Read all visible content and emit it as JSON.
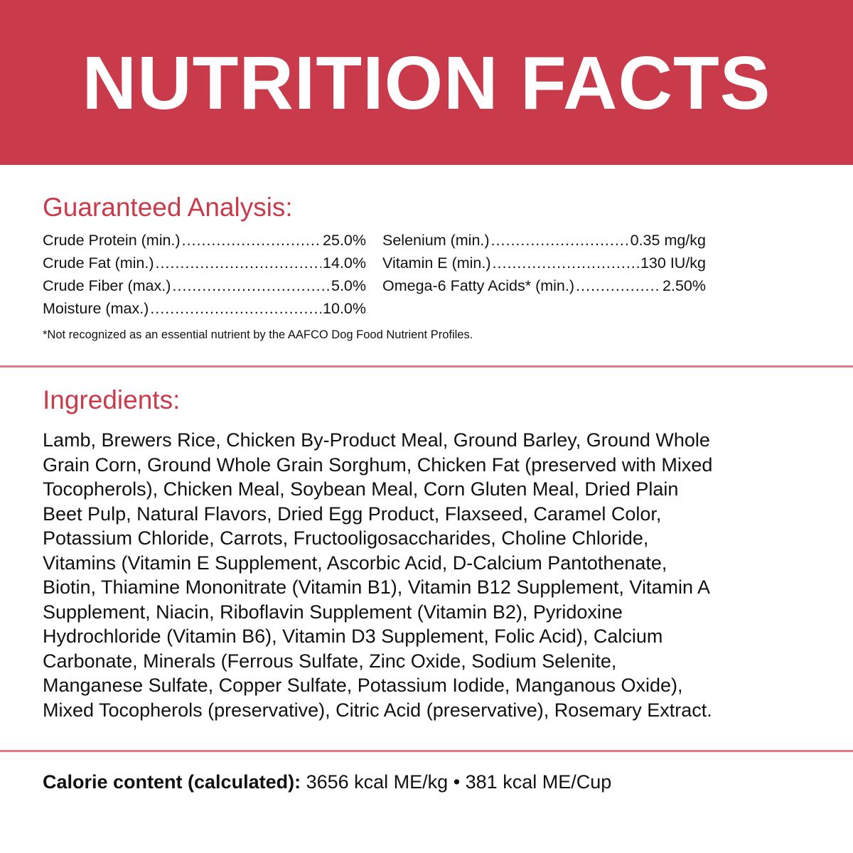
{
  "header": {
    "title": "NUTRITION FACTS",
    "background": "#c93b4b"
  },
  "guaranteed_analysis": {
    "heading": "Guaranteed Analysis:",
    "left": [
      {
        "label": "Crude Protein (min.)",
        "value": "25.0%"
      },
      {
        "label": "Crude Fat (min.)",
        "value": "14.0%"
      },
      {
        "label": "Crude Fiber (max.)",
        "value": "5.0%"
      },
      {
        "label": "Moisture (max.)",
        "value": "10.0%"
      }
    ],
    "right": [
      {
        "label": "Selenium (min.)",
        "value": "0.35 mg/kg"
      },
      {
        "label": "Vitamin E (min.)",
        "value": "130 IU/kg"
      },
      {
        "label": "Omega-6 Fatty Acids* (min.)",
        "value": "2.50%"
      }
    ],
    "footnote": "*Not recognized as an essential nutrient by the AAFCO Dog Food Nutrient Profiles."
  },
  "ingredients": {
    "heading": "Ingredients:",
    "lines": [
      "Lamb, Brewers Rice, Chicken By-Product Meal, Ground Barley, Ground Whole",
      "Grain Corn, Ground Whole Grain Sorghum, Chicken Fat (preserved with Mixed",
      "Tocopherols), Chicken Meal, Soybean Meal, Corn Gluten Meal, Dried Plain",
      "Beet Pulp, Natural Flavors, Dried Egg Product, Flaxseed, Caramel Color,",
      "Potassium Chloride, Carrots, Fructooligosaccharides, Choline Chloride,",
      "Vitamins (Vitamin E Supplement, Ascorbic Acid, D-Calcium Pantothenate,",
      "Biotin, Thiamine Mononitrate (Vitamin B1), Vitamin B12 Supplement, Vitamin A",
      "Supplement, Niacin, Riboflavin Supplement (Vitamin B2), Pyridoxine",
      "Hydrochloride (Vitamin B6), Vitamin D3 Supplement, Folic Acid), Calcium",
      "Carbonate, Minerals (Ferrous Sulfate, Zinc Oxide, Sodium Selenite,",
      "Manganese Sulfate, Copper Sulfate, Potassium Iodide, Manganous Oxide),",
      "Mixed Tocopherols (preservative), Citric Acid (preservative), Rosemary Extract."
    ]
  },
  "calorie": {
    "label": "Calorie content (calculated):",
    "value": "3656 kcal ME/kg • 381 kcal ME/Cup"
  },
  "colors": {
    "accent": "#c93b4b",
    "divider": "#e07a85"
  }
}
